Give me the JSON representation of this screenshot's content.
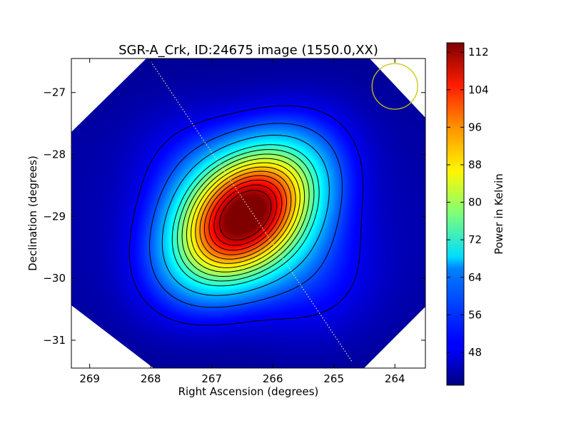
{
  "chart_data": {
    "type": "heatmap",
    "title": "SGR-A_Crk, ID:24675 image (1550.0,XX)",
    "xlabel": "Right Ascension (degrees)",
    "ylabel": "Declination (degrees)",
    "xlim": [
      269.3,
      263.5
    ],
    "ylim": [
      -31.45,
      -26.45
    ],
    "x_ticks": [
      269,
      268,
      267,
      266,
      265,
      264
    ],
    "y_ticks": [
      -27,
      -28,
      -29,
      -30,
      -31
    ],
    "x_tick_labels": [
      "269",
      "268",
      "267",
      "266",
      "265",
      "264"
    ],
    "y_tick_labels": [
      "−27",
      "−28",
      "−29",
      "−30",
      "−31"
    ],
    "peak": {
      "ra": 266.45,
      "dec": -28.98,
      "value": 113
    },
    "colorbar": {
      "label": "Power in Kelvin",
      "min": 41,
      "max": 114,
      "ticks": [
        48,
        56,
        64,
        72,
        80,
        88,
        96,
        104,
        112
      ],
      "tick_labels": [
        "48",
        "56",
        "64",
        "72",
        "80",
        "88",
        "96",
        "104",
        "112"
      ],
      "colormap": "jet"
    },
    "contour_levels": [
      49,
      56,
      63,
      70,
      74,
      78,
      82,
      86,
      90,
      94,
      98,
      102,
      106,
      110
    ],
    "beam_circle": {
      "ra": 264.0,
      "dec": -26.9,
      "color": "#c8c800"
    },
    "dotted_line": {
      "from": [
        268.0,
        -26.5
      ],
      "to": [
        264.7,
        -31.35
      ],
      "color": "#e6e6a0"
    },
    "grid": false
  },
  "colors": {
    "contour": "#000000",
    "beam": "#c8c800",
    "dotted_line": "#e6e6a0"
  }
}
